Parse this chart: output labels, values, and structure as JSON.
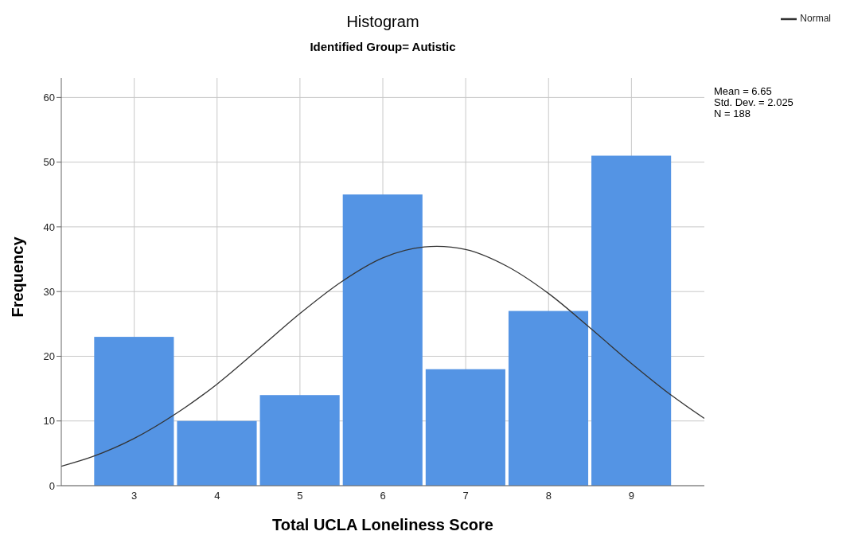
{
  "chart_data": {
    "type": "histogram",
    "title": "Histogram",
    "subtitle": "Identified Group= Autistic",
    "xlabel": "Total UCLA Loneliness Score",
    "ylabel": "Frequency",
    "bins": [
      2.5,
      3.5,
      4.5,
      5.5,
      6.5,
      7.5,
      8.5,
      9.5
    ],
    "values": [
      23,
      10,
      14,
      45,
      18,
      27,
      51
    ],
    "color": "#5494e4",
    "series": [
      {
        "type": "line",
        "name": "Normal",
        "color": "#333333",
        "x": [
          2.12,
          2.5,
          3,
          3.5,
          4,
          4.5,
          5,
          5.5,
          6,
          6.5,
          6.65,
          7,
          7.5,
          8,
          8.5,
          9,
          9.5,
          9.88
        ],
        "values": [
          3.0,
          4.5,
          7.3,
          11.1,
          15.7,
          21.1,
          26.6,
          31.5,
          35.2,
          36.9,
          37.0,
          36.5,
          33.9,
          29.7,
          24.4,
          18.9,
          13.8,
          10.4
        ]
      }
    ],
    "xlim": [
      2.12,
      9.88
    ],
    "xticks": [
      3,
      4,
      5,
      6,
      7,
      8,
      9
    ],
    "ylim": [
      0,
      63
    ],
    "yticks": [
      0,
      10,
      20,
      30,
      40,
      50,
      60
    ],
    "grid": true,
    "legend": "top right",
    "marker": "none",
    "line_style": "solid",
    "annotations": [
      "Mean = 6.65",
      "Std. Dev. = 2.025",
      "N = 188"
    ]
  }
}
